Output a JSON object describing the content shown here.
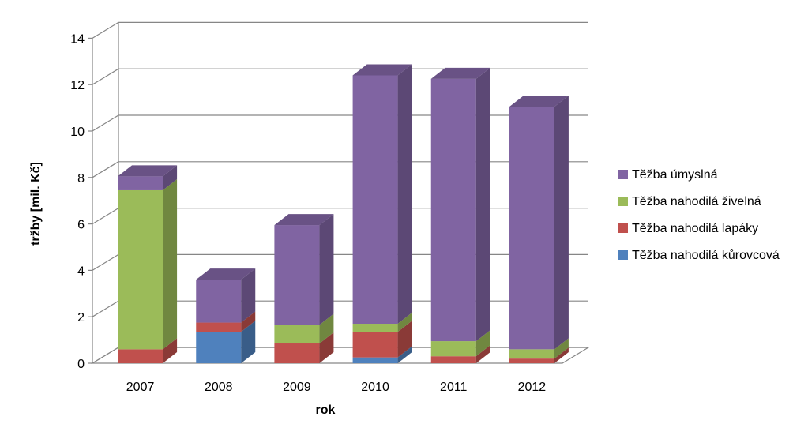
{
  "chart_data": {
    "type": "bar",
    "stacked": true,
    "three_d": true,
    "categories": [
      "2007",
      "2008",
      "2009",
      "2010",
      "2011",
      "2012"
    ],
    "series": [
      {
        "name": "Těžba nahodilá kůrovcová",
        "color": "#4f81bd",
        "values": [
          0,
          1.35,
          0,
          0.25,
          0,
          0
        ]
      },
      {
        "name": "Těžba nahodilá lapáky",
        "color": "#c0504d",
        "values": [
          0.6,
          0.4,
          0.85,
          1.1,
          0.3,
          0.2
        ]
      },
      {
        "name": "Těžba nahodilá živelná",
        "color": "#9bbb59",
        "values": [
          6.85,
          0,
          0.8,
          0.35,
          0.65,
          0.4
        ]
      },
      {
        "name": "Těžba úmyslná",
        "color": "#8064a2",
        "values": [
          0.6,
          1.85,
          4.3,
          10.7,
          11.3,
          10.45
        ]
      }
    ],
    "xlabel": "rok",
    "ylabel": "tržby [mil. Kč]",
    "ylim": [
      0,
      14
    ],
    "yticks": [
      "0",
      "2",
      "4",
      "6",
      "8",
      "10",
      "12",
      "14"
    ],
    "grid": true,
    "legend_position": "right"
  }
}
